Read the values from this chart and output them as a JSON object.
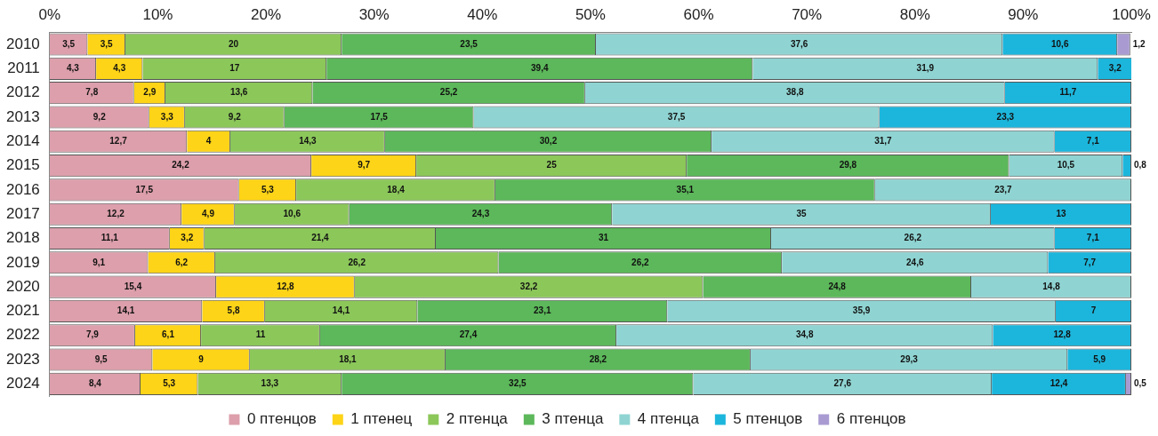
{
  "chart_data": {
    "type": "bar",
    "orientation": "horizontal",
    "stacked": true,
    "categories": [
      "2010",
      "2011",
      "2012",
      "2013",
      "2014",
      "2015",
      "2016",
      "2017",
      "2018",
      "2019",
      "2020",
      "2021",
      "2022",
      "2023",
      "2024"
    ],
    "xlim": [
      0,
      100
    ],
    "xticks": [
      {
        "value": 0,
        "label": "0%"
      },
      {
        "value": 10,
        "label": "10%"
      },
      {
        "value": 20,
        "label": "20%"
      },
      {
        "value": 30,
        "label": "30%"
      },
      {
        "value": 40,
        "label": "40%"
      },
      {
        "value": 50,
        "label": "50%"
      },
      {
        "value": 60,
        "label": "60%"
      },
      {
        "value": 70,
        "label": "70%"
      },
      {
        "value": 80,
        "label": "80%"
      },
      {
        "value": 90,
        "label": "90%"
      },
      {
        "value": 100,
        "label": "100%"
      }
    ],
    "grid": false,
    "legend": "bottom",
    "series": [
      {
        "name": "0 птенцов",
        "color": "#dc9fab",
        "values": [
          3.5,
          4.3,
          7.8,
          9.2,
          12.7,
          24.2,
          17.5,
          12.2,
          11.1,
          9.1,
          15.4,
          14.1,
          7.9,
          9.5,
          8.4
        ],
        "value_labels": [
          "3,5",
          "4,3",
          "7,8",
          "9,2",
          "12,7",
          "24,2",
          "17,5",
          "12,2",
          "11,1",
          "9,1",
          "15,4",
          "14,1",
          "7,9",
          "9,5",
          "8,4"
        ]
      },
      {
        "name": "1 птенец",
        "color": "#fdd417",
        "values": [
          3.5,
          4.3,
          2.9,
          3.3,
          4,
          9.7,
          5.3,
          4.9,
          3.2,
          6.2,
          12.8,
          5.8,
          6.1,
          9,
          5.3
        ],
        "value_labels": [
          "3,5",
          "4,3",
          "2,9",
          "3,3",
          "4",
          "9,7",
          "5,3",
          "4,9",
          "3,2",
          "6,2",
          "12,8",
          "5,8",
          "6,1",
          "9",
          "5,3"
        ]
      },
      {
        "name": "2 птенца",
        "color": "#8cc75a",
        "values": [
          20,
          17,
          13.6,
          9.2,
          14.3,
          25,
          18.4,
          10.6,
          21.4,
          26.2,
          32.2,
          14.1,
          11,
          18.1,
          13.3
        ],
        "value_labels": [
          "20",
          "17",
          "13,6",
          "9,2",
          "14,3",
          "25",
          "18,4",
          "10,6",
          "21,4",
          "26,2",
          "32,2",
          "14,1",
          "11",
          "18,1",
          "13,3"
        ]
      },
      {
        "name": "3 птенца",
        "color": "#5cb85a",
        "values": [
          23.5,
          39.4,
          25.2,
          17.5,
          30.2,
          29.8,
          35.1,
          24.3,
          31,
          26.2,
          24.8,
          23.1,
          27.4,
          28.2,
          32.5
        ],
        "value_labels": [
          "23,5",
          "39,4",
          "25,2",
          "17,5",
          "30,2",
          "29,8",
          "35,1",
          "24,3",
          "31",
          "26,2",
          "24,8",
          "23,1",
          "27,4",
          "28,2",
          "32,5"
        ]
      },
      {
        "name": "4 птенца",
        "color": "#8fd4d2",
        "values": [
          37.6,
          31.9,
          38.8,
          37.5,
          31.7,
          10.5,
          23.7,
          35,
          26.2,
          24.6,
          14.8,
          35.9,
          34.8,
          29.3,
          27.6
        ],
        "value_labels": [
          "37,6",
          "31,9",
          "38,8",
          "37,5",
          "31,7",
          "10,5",
          "23,7",
          "35",
          "26,2",
          "24,6",
          "14,8",
          "35,9",
          "34,8",
          "29,3",
          "27,6"
        ]
      },
      {
        "name": "5 птенцов",
        "color": "#1cb6dc",
        "values": [
          10.6,
          3.2,
          11.7,
          23.3,
          7.1,
          0.8,
          null,
          13,
          7.1,
          7.7,
          null,
          7,
          12.8,
          5.9,
          12.4
        ],
        "value_labels": [
          "10,6",
          "3,2",
          "11,7",
          "23,3",
          "7,1",
          "0,8",
          null,
          "13",
          "7,1",
          "7,7",
          null,
          "7",
          "12,8",
          "5,9",
          "12,4"
        ]
      },
      {
        "name": "6 птенцов",
        "color": "#a99bd2",
        "values": [
          1.2,
          null,
          null,
          null,
          null,
          null,
          null,
          null,
          null,
          null,
          null,
          null,
          null,
          null,
          0.5
        ],
        "value_labels": [
          "1,2",
          null,
          null,
          null,
          null,
          null,
          null,
          null,
          null,
          null,
          null,
          null,
          null,
          null,
          "0,5"
        ]
      }
    ]
  }
}
